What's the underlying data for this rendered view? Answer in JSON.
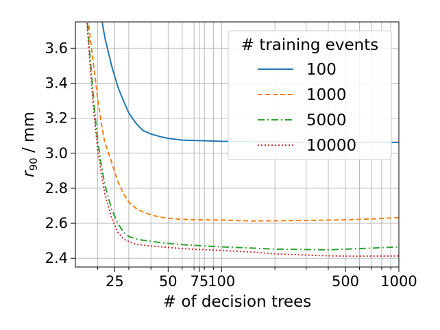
{
  "chart_data": {
    "type": "line",
    "xlabel": "# of decision trees",
    "ylabel_main": "r",
    "ylabel_sub": "90",
    "ylabel_unit": " / mm",
    "xscale": "log",
    "xlim": [
      15,
      1000
    ],
    "ylim": [
      2.35,
      3.75
    ],
    "grid": true,
    "x_major_ticks": [
      {
        "value": 25,
        "label": "25"
      },
      {
        "value": 50,
        "label": "50"
      },
      {
        "value": 75,
        "label": "75"
      },
      {
        "value": 100,
        "label": "100"
      },
      {
        "value": 500,
        "label": "500"
      },
      {
        "value": 1000,
        "label": "1000"
      }
    ],
    "x_minor_grid": [
      20,
      30,
      40,
      60,
      70,
      80,
      90,
      200,
      300,
      400,
      600,
      700,
      800,
      900
    ],
    "y_ticks": [
      {
        "value": 2.4,
        "label": "2.4"
      },
      {
        "value": 2.6,
        "label": "2.6"
      },
      {
        "value": 2.8,
        "label": "2.8"
      },
      {
        "value": 3.0,
        "label": "3.0"
      },
      {
        "value": 3.2,
        "label": "3.2"
      },
      {
        "value": 3.4,
        "label": "3.4"
      },
      {
        "value": 3.6,
        "label": "3.6"
      }
    ],
    "legend": {
      "title": "# training events",
      "position": "top-right"
    },
    "series": [
      {
        "name": "100",
        "color": "#1f77b4",
        "dash": "solid",
        "x": [
          20,
          21,
          22,
          24,
          26,
          28,
          30,
          33,
          36,
          40,
          45,
          50,
          60,
          75,
          100,
          150,
          200,
          300,
          500,
          700,
          1000
        ],
        "y": [
          3.9,
          3.78,
          3.66,
          3.5,
          3.38,
          3.3,
          3.23,
          3.17,
          3.13,
          3.11,
          3.095,
          3.085,
          3.075,
          3.072,
          3.068,
          3.065,
          3.065,
          3.063,
          3.062,
          3.062,
          3.062
        ]
      },
      {
        "name": "1000",
        "color": "#ff7f0e",
        "dash": "dashed",
        "x": [
          17,
          18,
          19,
          20,
          21,
          22,
          24,
          26,
          28,
          30,
          33,
          36,
          40,
          45,
          50,
          60,
          75,
          100,
          150,
          200,
          300,
          400,
          500,
          700,
          1000
        ],
        "y": [
          3.9,
          3.7,
          3.5,
          3.32,
          3.17,
          3.06,
          2.95,
          2.84,
          2.77,
          2.72,
          2.685,
          2.665,
          2.648,
          2.635,
          2.628,
          2.622,
          2.62,
          2.618,
          2.613,
          2.614,
          2.616,
          2.618,
          2.62,
          2.625,
          2.632
        ]
      },
      {
        "name": "5000",
        "color": "#2ca02c",
        "dash": "dashdot",
        "x": [
          17,
          18,
          19,
          20,
          21,
          22,
          24,
          26,
          28,
          30,
          33,
          36,
          40,
          45,
          50,
          60,
          75,
          100,
          150,
          200,
          300,
          400,
          500,
          700,
          1000
        ],
        "y": [
          3.9,
          3.6,
          3.3,
          3.08,
          2.93,
          2.82,
          2.68,
          2.6,
          2.55,
          2.525,
          2.51,
          2.503,
          2.497,
          2.49,
          2.485,
          2.478,
          2.472,
          2.465,
          2.458,
          2.452,
          2.45,
          2.448,
          2.452,
          2.458,
          2.465
        ]
      },
      {
        "name": "10000",
        "color": "#d62728",
        "dash": "dotted",
        "x": [
          17,
          18,
          19,
          20,
          21,
          22,
          24,
          26,
          28,
          30,
          33,
          36,
          40,
          45,
          50,
          60,
          75,
          100,
          150,
          200,
          300,
          400,
          500,
          700,
          1000
        ],
        "y": [
          3.9,
          3.55,
          3.25,
          3.03,
          2.88,
          2.77,
          2.63,
          2.55,
          2.51,
          2.495,
          2.48,
          2.475,
          2.47,
          2.466,
          2.462,
          2.455,
          2.45,
          2.445,
          2.435,
          2.425,
          2.418,
          2.414,
          2.412,
          2.412,
          2.413
        ]
      }
    ]
  }
}
